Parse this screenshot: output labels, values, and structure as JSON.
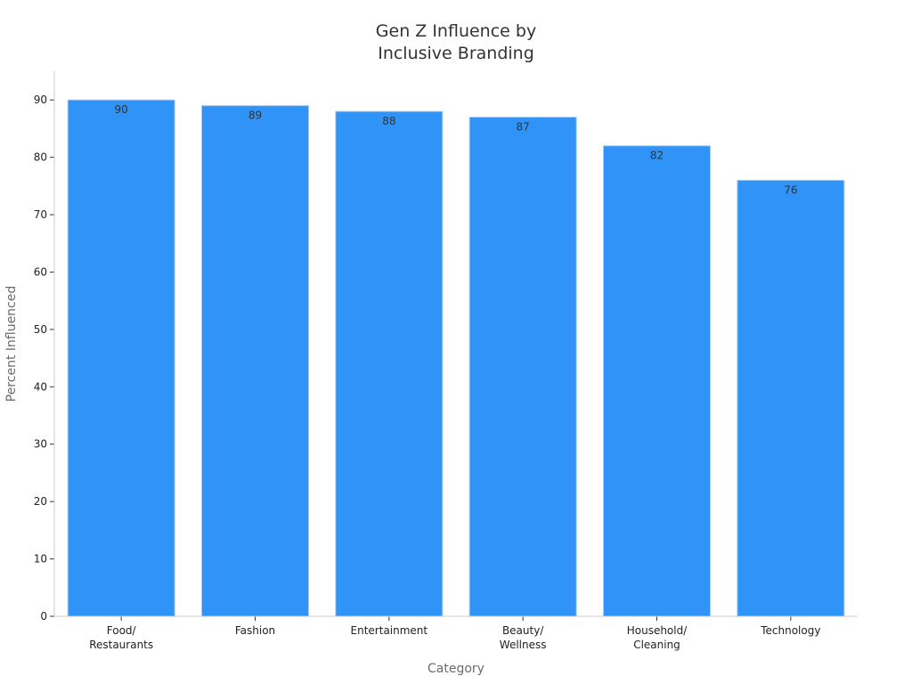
{
  "chart_data": {
    "type": "bar",
    "title_lines": [
      "Gen Z Influence by",
      "Inclusive Branding"
    ],
    "xlabel": "Category",
    "ylabel": "Percent Influenced",
    "categories": [
      [
        "Food/",
        "Restaurants"
      ],
      [
        "Fashion"
      ],
      [
        "Entertainment"
      ],
      [
        "Beauty/",
        "Wellness"
      ],
      [
        "Household/",
        "Cleaning"
      ],
      [
        "Technology"
      ]
    ],
    "values": [
      90,
      89,
      88,
      87,
      82,
      76
    ],
    "ylim": [
      0,
      95
    ],
    "yticks": [
      0,
      10,
      20,
      30,
      40,
      50,
      60,
      70,
      80,
      90
    ],
    "grid": false,
    "bar_color": "#2f93f7",
    "bar_edge_color": "#a9c9ee"
  }
}
